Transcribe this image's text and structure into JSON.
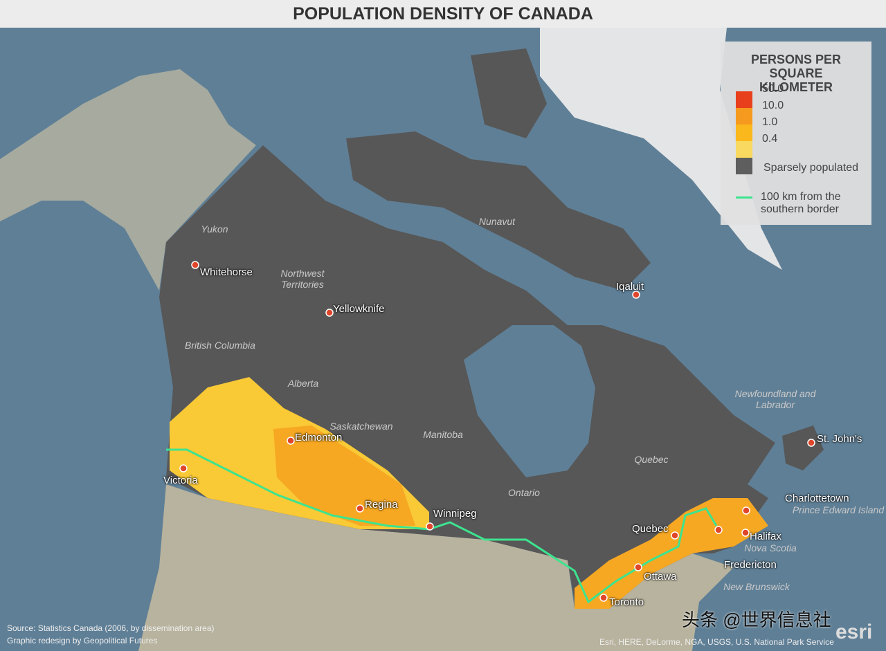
{
  "title": "POPULATION DENSITY OF CANADA",
  "legend": {
    "title": "PERSONS PER SQUARE KILOMETER",
    "items": [
      {
        "label": "50.0",
        "color": "#e8401c"
      },
      {
        "label": "10.0",
        "color": "#f59a1e"
      },
      {
        "label": "1.0",
        "color": "#fbb81c"
      },
      {
        "label": "0.4",
        "color": "#f9d960"
      },
      {
        "label": "Sparsely populated",
        "color": "#5e5e5e"
      }
    ],
    "line": {
      "label": "100 km from the southern border",
      "color": "#3de38f"
    }
  },
  "cities": [
    "Whitehorse",
    "Yellowknife",
    "Iqaluit",
    "Edmonton",
    "Victoria",
    "Regina",
    "Winnipeg",
    "Quebec",
    "Ottawa",
    "Toronto",
    "Fredericton",
    "Halifax",
    "Charlottetown",
    "St. John's"
  ],
  "regions": [
    "Yukon",
    "Northwest Territories",
    "Nunavut",
    "British Columbia",
    "Alberta",
    "Saskatchewan",
    "Manitoba",
    "Ontario",
    "Quebec",
    "Newfoundland and Labrador",
    "Prince Edward Island",
    "Nova Scotia",
    "New Brunswick"
  ],
  "source": "Source: Statistics Canada (2006, by dissemination area)",
  "redesign": "Graphic redesign by Geopolitical Futures",
  "credits": "Esri, HERE, DeLorme, NGA, USGS, U.S. National Park Service",
  "watermark": "头条 @世界信息社",
  "logo": "esri"
}
